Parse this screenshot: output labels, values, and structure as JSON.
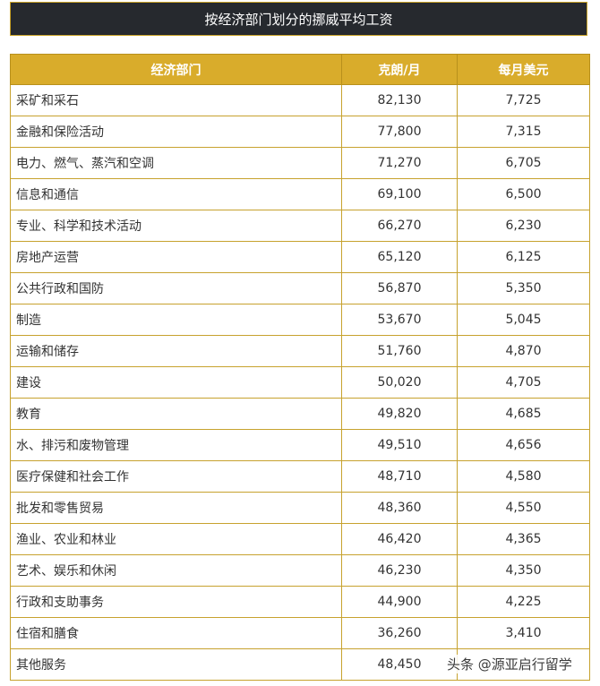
{
  "title": "按经济部门划分的挪威平均工资",
  "table": {
    "headers": [
      "经济部门",
      "克朗/月",
      "每月美元"
    ],
    "rows": [
      {
        "sector": "采矿和采石",
        "nok": "82,130",
        "usd": "7,725"
      },
      {
        "sector": "金融和保险活动",
        "nok": "77,800",
        "usd": "7,315"
      },
      {
        "sector": "电力、燃气、蒸汽和空调",
        "nok": "71,270",
        "usd": "6,705"
      },
      {
        "sector": "信息和通信",
        "nok": "69,100",
        "usd": "6,500"
      },
      {
        "sector": "专业、科学和技术活动",
        "nok": "66,270",
        "usd": "6,230"
      },
      {
        "sector": "房地产运营",
        "nok": "65,120",
        "usd": "6,125"
      },
      {
        "sector": "公共行政和国防",
        "nok": "56,870",
        "usd": "5,350"
      },
      {
        "sector": "制造",
        "nok": "53,670",
        "usd": "5,045"
      },
      {
        "sector": "运输和储存",
        "nok": "51,760",
        "usd": "4,870"
      },
      {
        "sector": "建设",
        "nok": "50,020",
        "usd": "4,705"
      },
      {
        "sector": "教育",
        "nok": "49,820",
        "usd": "4,685"
      },
      {
        "sector": "水、排污和废物管理",
        "nok": "49,510",
        "usd": "4,656"
      },
      {
        "sector": "医疗保健和社会工作",
        "nok": "48,710",
        "usd": "4,580"
      },
      {
        "sector": "批发和零售贸易",
        "nok": "48,360",
        "usd": "4,550"
      },
      {
        "sector": "渔业、农业和林业",
        "nok": "46,420",
        "usd": "4,365"
      },
      {
        "sector": "艺术、娱乐和休闲",
        "nok": "46,230",
        "usd": "4,350"
      },
      {
        "sector": "行政和支助事务",
        "nok": "44,900",
        "usd": "4,225"
      },
      {
        "sector": "住宿和膳食",
        "nok": "36,260",
        "usd": "3,410"
      },
      {
        "sector": "其他服务",
        "nok": "48,450",
        "usd": ""
      }
    ]
  },
  "watermark": "头条 @源亚启行留学",
  "colors": {
    "title_background": "#26292e",
    "header_background": "#d9ac2b",
    "border": "#c7a22e"
  }
}
